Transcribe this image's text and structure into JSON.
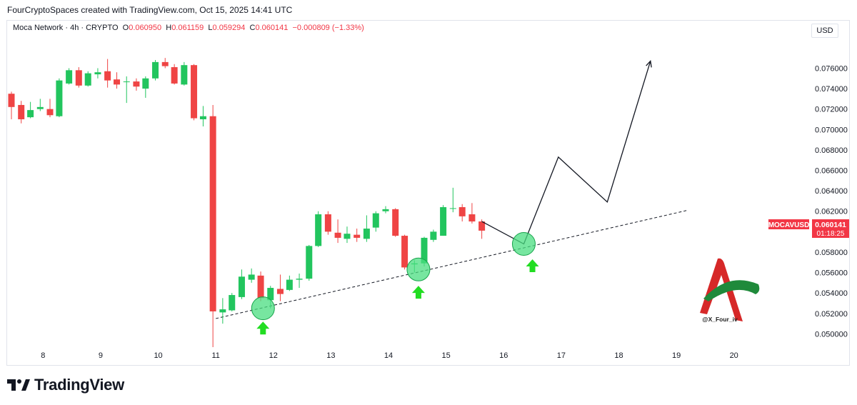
{
  "header": {
    "caption": "FourCryptoSpaces created with TradingView.com, Oct 15, 2025 14:41 UTC"
  },
  "legend": {
    "symbol": "Moca Network · 4h · CRYPTO",
    "o_label": "O",
    "o_value": "0.060950",
    "h_label": "H",
    "h_value": "0.061159",
    "l_label": "L",
    "l_value": "0.059294",
    "c_label": "C",
    "c_value": "0.060141",
    "change": "−0.000809 (−1.33%)"
  },
  "currency": "USD",
  "price_tag": {
    "symbol": "MOCAVUSD",
    "price": "0.060141",
    "countdown": "01:18:25"
  },
  "watermark": {
    "handle": "@X_Four_iv"
  },
  "footer": {
    "brand": "TradingView"
  },
  "colors": {
    "up": "#22c55e",
    "down": "#ef4444",
    "tag": "#f23645",
    "highlight": "#4ade80",
    "arrow": "#22dd22"
  },
  "chart_data": {
    "type": "candlestick",
    "y_ticks": [
      "0.076000",
      "0.074000",
      "0.072000",
      "0.070000",
      "0.068000",
      "0.066000",
      "0.064000",
      "0.062000",
      "0.058000",
      "0.056000",
      "0.054000",
      "0.052000",
      "0.050000"
    ],
    "x_ticks": [
      "8",
      "9",
      "10",
      "11",
      "12",
      "13",
      "14",
      "15",
      "16",
      "17",
      "18",
      "19",
      "20"
    ],
    "ylim": [
      0.0487,
      0.0775
    ],
    "xlim": [
      7.45,
      20.5
    ],
    "candles": [
      {
        "t": 7.45,
        "o": 0.0735,
        "h": 0.0737,
        "l": 0.071,
        "c": 0.0722
      },
      {
        "t": 7.62,
        "o": 0.0724,
        "h": 0.0728,
        "l": 0.0706,
        "c": 0.071
      },
      {
        "t": 7.78,
        "o": 0.0712,
        "h": 0.0727,
        "l": 0.0711,
        "c": 0.0719
      },
      {
        "t": 7.95,
        "o": 0.072,
        "h": 0.073,
        "l": 0.0718,
        "c": 0.0722
      },
      {
        "t": 8.12,
        "o": 0.072,
        "h": 0.073,
        "l": 0.0712,
        "c": 0.0714
      },
      {
        "t": 8.28,
        "o": 0.0713,
        "h": 0.075,
        "l": 0.0712,
        "c": 0.0748
      },
      {
        "t": 8.45,
        "o": 0.0745,
        "h": 0.076,
        "l": 0.0744,
        "c": 0.0758
      },
      {
        "t": 8.62,
        "o": 0.0758,
        "h": 0.0761,
        "l": 0.0741,
        "c": 0.0743
      },
      {
        "t": 8.78,
        "o": 0.0743,
        "h": 0.0757,
        "l": 0.0742,
        "c": 0.0755
      },
      {
        "t": 8.95,
        "o": 0.0754,
        "h": 0.076,
        "l": 0.075,
        "c": 0.0756
      },
      {
        "t": 9.12,
        "o": 0.0757,
        "h": 0.0769,
        "l": 0.0741,
        "c": 0.0748
      },
      {
        "t": 9.28,
        "o": 0.0749,
        "h": 0.0756,
        "l": 0.074,
        "c": 0.0744
      },
      {
        "t": 9.45,
        "o": 0.0747,
        "h": 0.0752,
        "l": 0.0726,
        "c": 0.0747
      },
      {
        "t": 9.62,
        "o": 0.0747,
        "h": 0.075,
        "l": 0.0738,
        "c": 0.0742
      },
      {
        "t": 9.78,
        "o": 0.074,
        "h": 0.0752,
        "l": 0.0731,
        "c": 0.075
      },
      {
        "t": 9.95,
        "o": 0.075,
        "h": 0.0768,
        "l": 0.0748,
        "c": 0.0766
      },
      {
        "t": 10.12,
        "o": 0.0766,
        "h": 0.077,
        "l": 0.076,
        "c": 0.0762
      },
      {
        "t": 10.28,
        "o": 0.0761,
        "h": 0.0764,
        "l": 0.0744,
        "c": 0.0745
      },
      {
        "t": 10.45,
        "o": 0.0744,
        "h": 0.0766,
        "l": 0.0743,
        "c": 0.0763
      },
      {
        "t": 10.62,
        "o": 0.0763,
        "h": 0.0764,
        "l": 0.0709,
        "c": 0.0711
      },
      {
        "t": 10.78,
        "o": 0.071,
        "h": 0.0723,
        "l": 0.0703,
        "c": 0.0713
      },
      {
        "t": 10.95,
        "o": 0.0713,
        "h": 0.0724,
        "l": 0.0487,
        "c": 0.0522
      },
      {
        "t": 11.12,
        "o": 0.0521,
        "h": 0.0535,
        "l": 0.051,
        "c": 0.0524
      },
      {
        "t": 11.28,
        "o": 0.0523,
        "h": 0.054,
        "l": 0.0522,
        "c": 0.0538
      },
      {
        "t": 11.45,
        "o": 0.0536,
        "h": 0.0563,
        "l": 0.0534,
        "c": 0.0556
      },
      {
        "t": 11.62,
        "o": 0.0553,
        "h": 0.0564,
        "l": 0.055,
        "c": 0.0558
      },
      {
        "t": 11.78,
        "o": 0.0557,
        "h": 0.0561,
        "l": 0.0532,
        "c": 0.0535
      },
      {
        "t": 11.95,
        "o": 0.0533,
        "h": 0.0547,
        "l": 0.0525,
        "c": 0.0545
      },
      {
        "t": 12.12,
        "o": 0.0544,
        "h": 0.0558,
        "l": 0.0532,
        "c": 0.0539
      },
      {
        "t": 12.28,
        "o": 0.0543,
        "h": 0.0557,
        "l": 0.0542,
        "c": 0.0553
      },
      {
        "t": 12.45,
        "o": 0.0553,
        "h": 0.0559,
        "l": 0.0545,
        "c": 0.0554
      },
      {
        "t": 12.62,
        "o": 0.0554,
        "h": 0.0587,
        "l": 0.0552,
        "c": 0.0586
      },
      {
        "t": 12.78,
        "o": 0.0586,
        "h": 0.062,
        "l": 0.0585,
        "c": 0.0617
      },
      {
        "t": 12.95,
        "o": 0.0617,
        "h": 0.062,
        "l": 0.0597,
        "c": 0.06
      },
      {
        "t": 13.12,
        "o": 0.0599,
        "h": 0.0612,
        "l": 0.0589,
        "c": 0.0594
      },
      {
        "t": 13.28,
        "o": 0.0593,
        "h": 0.0605,
        "l": 0.0589,
        "c": 0.0598
      },
      {
        "t": 13.45,
        "o": 0.0597,
        "h": 0.0603,
        "l": 0.059,
        "c": 0.0594
      },
      {
        "t": 13.62,
        "o": 0.0593,
        "h": 0.0616,
        "l": 0.059,
        "c": 0.0603
      },
      {
        "t": 13.78,
        "o": 0.0604,
        "h": 0.062,
        "l": 0.06,
        "c": 0.0618
      },
      {
        "t": 13.95,
        "o": 0.062,
        "h": 0.0625,
        "l": 0.0618,
        "c": 0.0622
      },
      {
        "t": 14.12,
        "o": 0.0622,
        "h": 0.0623,
        "l": 0.0595,
        "c": 0.0596
      },
      {
        "t": 14.28,
        "o": 0.0596,
        "h": 0.0597,
        "l": 0.0563,
        "c": 0.0565
      },
      {
        "t": 14.45,
        "o": 0.0568,
        "h": 0.0572,
        "l": 0.056,
        "c": 0.0569
      },
      {
        "t": 14.62,
        "o": 0.0569,
        "h": 0.0595,
        "l": 0.0566,
        "c": 0.0594
      },
      {
        "t": 14.78,
        "o": 0.0592,
        "h": 0.0602,
        "l": 0.059,
        "c": 0.06
      },
      {
        "t": 14.95,
        "o": 0.0596,
        "h": 0.0626,
        "l": 0.0596,
        "c": 0.0624
      },
      {
        "t": 15.12,
        "o": 0.0623,
        "h": 0.0643,
        "l": 0.0619,
        "c": 0.0623
      },
      {
        "t": 15.28,
        "o": 0.0624,
        "h": 0.0627,
        "l": 0.061,
        "c": 0.0615
      },
      {
        "t": 15.45,
        "o": 0.0617,
        "h": 0.0628,
        "l": 0.0608,
        "c": 0.061
      },
      {
        "t": 15.62,
        "o": 0.061,
        "h": 0.0612,
        "l": 0.0593,
        "c": 0.0601
      }
    ],
    "trendline": [
      [
        11.0,
        0.0515
      ],
      [
        19.2,
        0.0621
      ]
    ],
    "projection": [
      [
        15.62,
        0.061
      ],
      [
        16.35,
        0.0588
      ],
      [
        16.95,
        0.0673
      ],
      [
        17.8,
        0.0629
      ],
      [
        18.55,
        0.0767
      ]
    ],
    "highlights": [
      {
        "t": 11.82,
        "p": 0.0525
      },
      {
        "t": 14.52,
        "p": 0.0563
      },
      {
        "t": 16.35,
        "p": 0.0588
      }
    ],
    "up_arrows": [
      {
        "t": 11.82,
        "p": 0.0505
      },
      {
        "t": 14.52,
        "p": 0.054
      },
      {
        "t": 16.5,
        "p": 0.0566
      }
    ],
    "current_price": 0.060141
  }
}
